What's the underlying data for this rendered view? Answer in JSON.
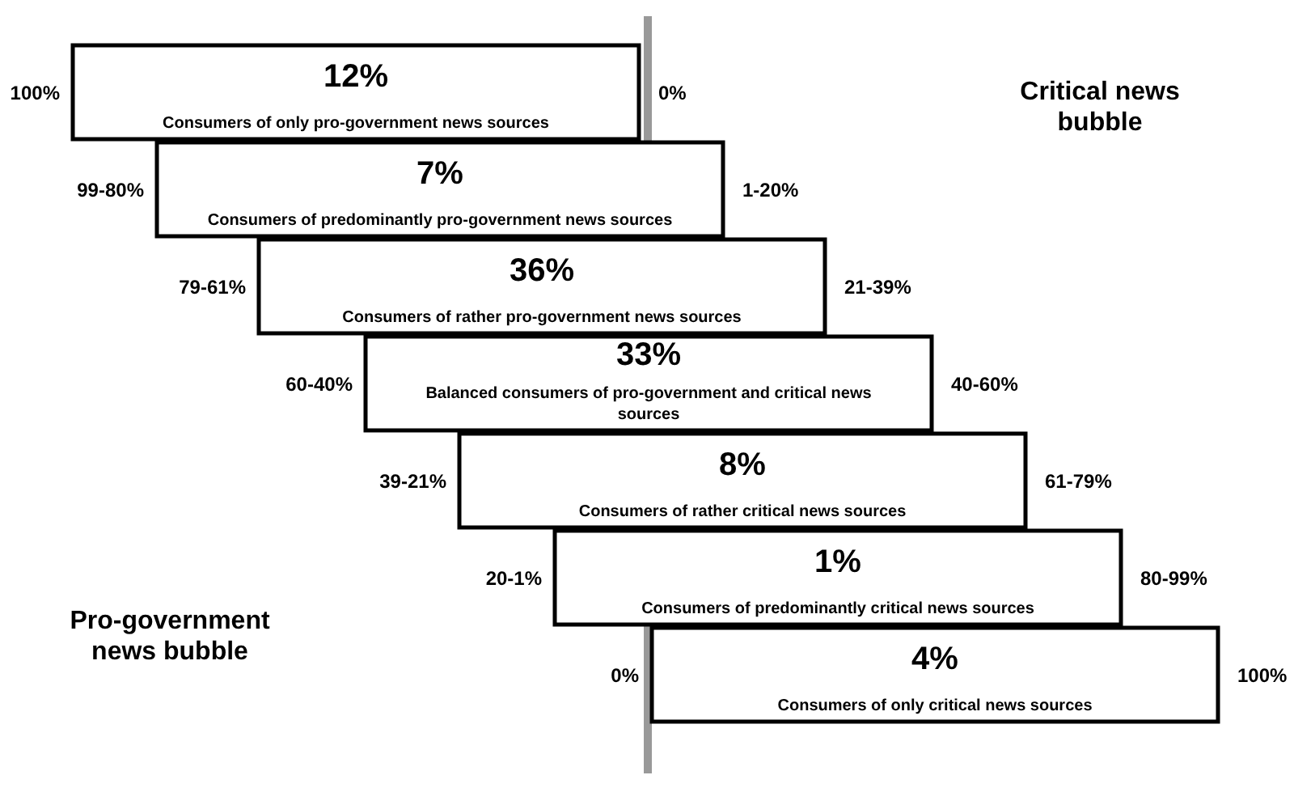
{
  "chart_data": {
    "type": "other",
    "categories": [
      "Consumers of only pro-government news sources",
      "Consumers of predominantly pro-government news sources",
      "Consumers of rather pro-government news sources",
      "Balanced consumers of pro-government and critical news sources",
      "Consumers of rather critical news sources",
      "Consumers of predominantly critical news sources",
      "Consumers of only critical news sources"
    ],
    "values": [
      12,
      7,
      36,
      33,
      8,
      1,
      4
    ],
    "value_labels": [
      "12%",
      "7%",
      "36%",
      "33%",
      "8%",
      "1%",
      "4%"
    ],
    "annotations": [
      "100%",
      "99-80%",
      "79-61%",
      "60-40%",
      "39-21%",
      "20-1%",
      "0%",
      "0%",
      "1-20%",
      "21-39%",
      "40-60%",
      "61-79%",
      "80-99%",
      "100%",
      "Critical news bubble",
      "Pro-government news bubble"
    ]
  }
}
